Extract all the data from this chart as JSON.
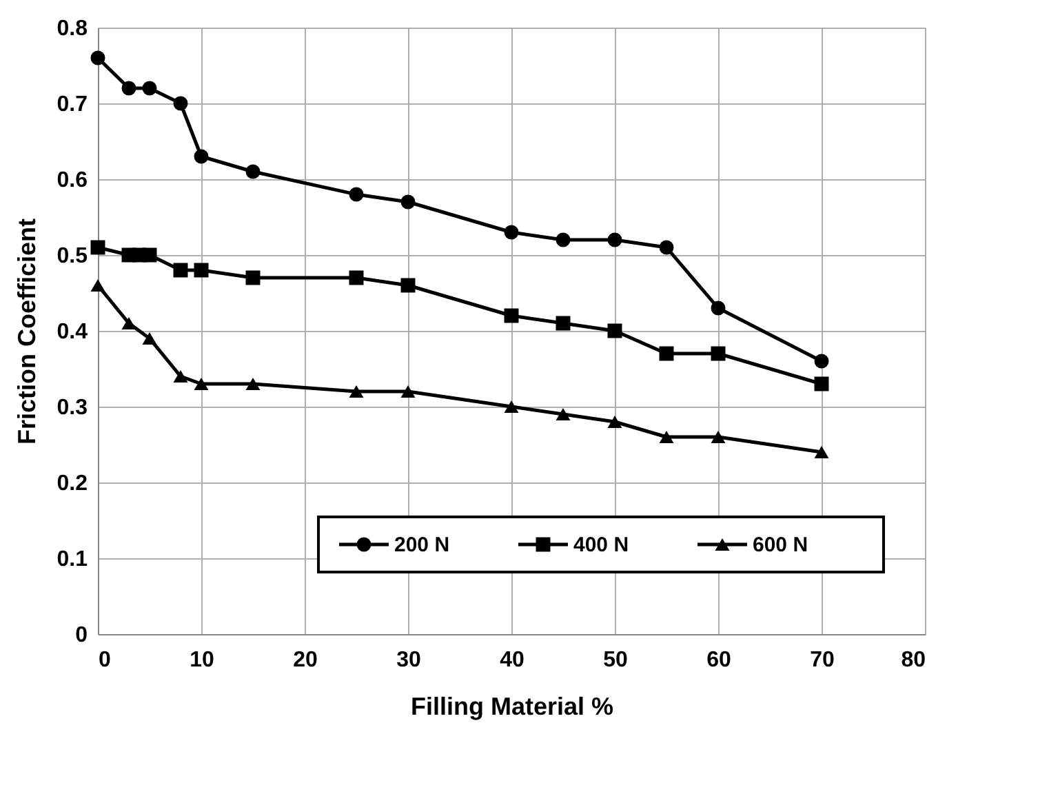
{
  "chart_data": {
    "type": "line",
    "xlabel": "Filling Material %",
    "ylabel": "Friction Coefficient",
    "xlim": [
      0,
      80
    ],
    "xticks": [
      0,
      10,
      20,
      30,
      40,
      50,
      60,
      70,
      80
    ],
    "ylim": [
      0,
      0.8
    ],
    "yticks": [
      0,
      0.1,
      0.2,
      0.3,
      0.4,
      0.5,
      0.6,
      0.7,
      0.8
    ],
    "grid": true,
    "legend": "bottom right",
    "line_style": "solid",
    "series": [
      {
        "name": "200 N",
        "color": "#000000",
        "marker": "circle",
        "x": [
          0,
          3,
          5,
          8,
          10,
          15,
          25,
          30,
          40,
          45,
          50,
          55,
          60,
          70
        ],
        "values": [
          0.76,
          0.72,
          0.72,
          0.7,
          0.63,
          0.61,
          0.58,
          0.57,
          0.53,
          0.52,
          0.52,
          0.51,
          0.43,
          0.36
        ]
      },
      {
        "name": "400 N",
        "color": "#000000",
        "marker": "square",
        "x": [
          0,
          3,
          4,
          5,
          8,
          10,
          15,
          25,
          30,
          40,
          45,
          50,
          55,
          60,
          70
        ],
        "values": [
          0.51,
          0.5,
          0.5,
          0.5,
          0.48,
          0.48,
          0.47,
          0.47,
          0.46,
          0.42,
          0.41,
          0.4,
          0.37,
          0.37,
          0.33
        ]
      },
      {
        "name": "600 N",
        "color": "#000000",
        "marker": "triangle",
        "x": [
          0,
          3,
          5,
          8,
          10,
          15,
          25,
          30,
          40,
          45,
          50,
          55,
          60,
          70
        ],
        "values": [
          0.46,
          0.41,
          0.39,
          0.34,
          0.33,
          0.33,
          0.32,
          0.32,
          0.3,
          0.29,
          0.28,
          0.26,
          0.26,
          0.24
        ]
      }
    ]
  }
}
